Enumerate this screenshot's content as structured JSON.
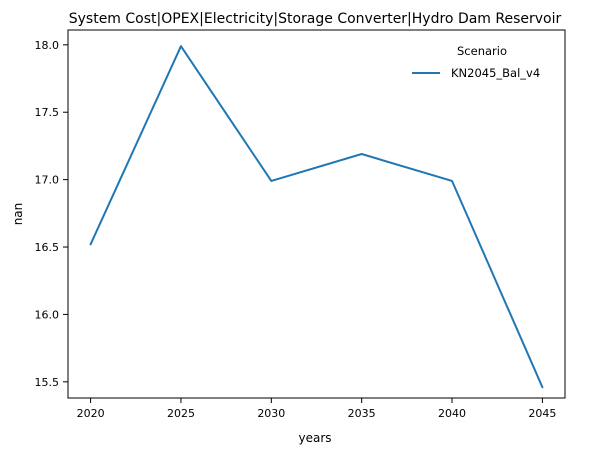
{
  "chart_data": {
    "type": "line",
    "title": "System Cost|OPEX|Electricity|Storage Converter|Hydro Dam Reservoir",
    "xlabel": "years",
    "ylabel": "nan",
    "x": [
      2020,
      2025,
      2030,
      2035,
      2040,
      2045
    ],
    "xticks": [
      "2020",
      "2025",
      "2030",
      "2035",
      "2040",
      "2045"
    ],
    "yticks": [
      "15.5",
      "16.0",
      "16.5",
      "17.0",
      "17.5",
      "18.0"
    ],
    "ytick_values": [
      15.5,
      16.0,
      16.5,
      17.0,
      17.5,
      18.0
    ],
    "xlim": [
      2018.75,
      2046.25
    ],
    "ylim": [
      15.38,
      18.11
    ],
    "grid": false,
    "legend": {
      "title": "Scenario",
      "placement": "top-right"
    },
    "series": [
      {
        "name": "KN2045_Bal_v4",
        "color": "#1f77b4",
        "values": [
          16.52,
          17.99,
          16.99,
          17.19,
          16.99,
          15.46
        ]
      }
    ]
  }
}
